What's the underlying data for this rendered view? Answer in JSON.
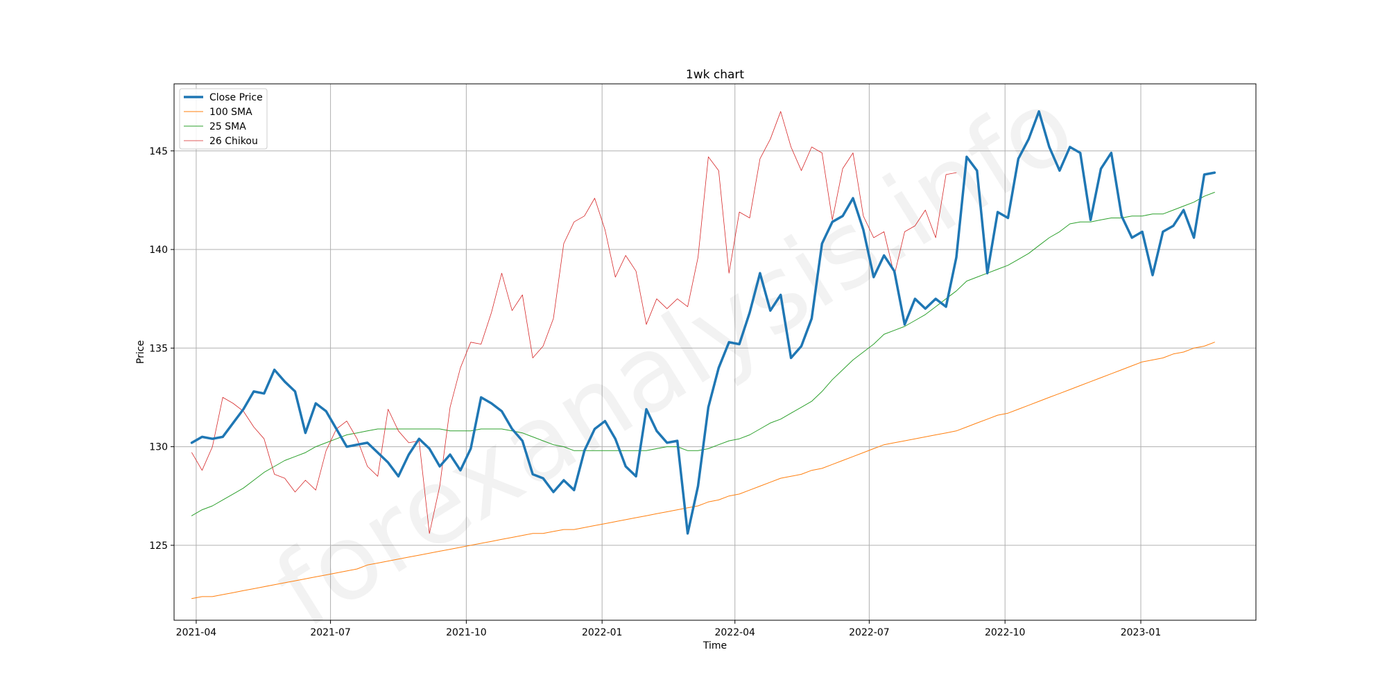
{
  "chart_data": {
    "type": "line",
    "title": "1wk chart",
    "xlabel": "Time",
    "ylabel": "Price",
    "x_start": "2021-03-29",
    "x_step_days": 7,
    "xlim": [
      "2021-03-17",
      "2023-03-20"
    ],
    "ylim": [
      121.2,
      148.4
    ],
    "x_ticks": [
      "2021-04",
      "2021-07",
      "2021-10",
      "2022-01",
      "2022-04",
      "2022-07",
      "2022-10",
      "2023-01"
    ],
    "x_tick_dates": [
      "2021-04-01",
      "2021-07-01",
      "2021-10-01",
      "2022-01-01",
      "2022-04-01",
      "2022-07-01",
      "2022-10-01",
      "2023-01-01"
    ],
    "y_ticks": [
      125,
      130,
      135,
      140,
      145
    ],
    "grid": true,
    "legend_position": "top-left",
    "watermark": "forexanalysis.info",
    "series": [
      {
        "name": "Close Price",
        "color": "#1f77b4",
        "width": 3.5,
        "values": [
          130.2,
          130.5,
          130.4,
          130.5,
          131.2,
          131.9,
          132.8,
          132.7,
          133.9,
          133.3,
          132.8,
          130.7,
          132.2,
          131.8,
          130.9,
          130.0,
          130.1,
          130.2,
          129.7,
          129.2,
          128.5,
          129.6,
          130.4,
          129.9,
          129.0,
          129.6,
          128.8,
          129.9,
          132.5,
          132.2,
          131.8,
          130.9,
          130.3,
          128.6,
          128.4,
          127.7,
          128.3,
          127.8,
          129.8,
          130.9,
          131.3,
          130.4,
          129.0,
          128.5,
          131.9,
          130.8,
          130.2,
          130.3,
          125.6,
          128.0,
          132.0,
          134.0,
          135.3,
          135.2,
          136.8,
          138.8,
          136.9,
          137.7,
          134.5,
          135.1,
          136.5,
          140.3,
          141.4,
          141.7,
          142.6,
          141.0,
          138.6,
          139.7,
          138.9,
          136.2,
          137.5,
          137.0,
          137.5,
          137.1,
          139.6,
          144.7,
          144.0,
          138.8,
          141.9,
          141.6,
          144.6,
          145.6,
          147.0,
          145.2,
          144.0,
          145.2,
          144.9,
          141.5,
          144.1,
          144.9,
          141.7,
          140.6,
          140.9,
          138.7,
          140.9,
          141.2,
          142.0,
          140.6,
          143.8,
          143.9
        ]
      },
      {
        "name": "100 SMA",
        "color": "#ff7f0e",
        "width": 1,
        "values": [
          122.3,
          122.4,
          122.4,
          122.5,
          122.6,
          122.7,
          122.8,
          122.9,
          123.0,
          123.1,
          123.2,
          123.3,
          123.4,
          123.5,
          123.6,
          123.7,
          123.8,
          124.0,
          124.1,
          124.2,
          124.3,
          124.4,
          124.5,
          124.6,
          124.7,
          124.8,
          124.9,
          125.0,
          125.1,
          125.2,
          125.3,
          125.4,
          125.5,
          125.6,
          125.6,
          125.7,
          125.8,
          125.8,
          125.9,
          126.0,
          126.1,
          126.2,
          126.3,
          126.4,
          126.5,
          126.6,
          126.7,
          126.8,
          126.9,
          127.0,
          127.2,
          127.3,
          127.5,
          127.6,
          127.8,
          128.0,
          128.2,
          128.4,
          128.5,
          128.6,
          128.8,
          128.9,
          129.1,
          129.3,
          129.5,
          129.7,
          129.9,
          130.1,
          130.2,
          130.3,
          130.4,
          130.5,
          130.6,
          130.7,
          130.8,
          131.0,
          131.2,
          131.4,
          131.6,
          131.7,
          131.9,
          132.1,
          132.3,
          132.5,
          132.7,
          132.9,
          133.1,
          133.3,
          133.5,
          133.7,
          133.9,
          134.1,
          134.3,
          134.4,
          134.5,
          134.7,
          134.8,
          135.0,
          135.1,
          135.3
        ]
      },
      {
        "name": "25 SMA",
        "color": "#2ca02c",
        "width": 1,
        "values": [
          126.5,
          126.8,
          127.0,
          127.3,
          127.6,
          127.9,
          128.3,
          128.7,
          129.0,
          129.3,
          129.5,
          129.7,
          130.0,
          130.2,
          130.4,
          130.6,
          130.7,
          130.8,
          130.9,
          130.9,
          130.9,
          130.9,
          130.9,
          130.9,
          130.9,
          130.8,
          130.8,
          130.8,
          130.9,
          130.9,
          130.9,
          130.8,
          130.7,
          130.5,
          130.3,
          130.1,
          130.0,
          129.8,
          129.8,
          129.8,
          129.8,
          129.8,
          129.8,
          129.8,
          129.8,
          129.9,
          130.0,
          130.0,
          129.8,
          129.8,
          129.9,
          130.1,
          130.3,
          130.4,
          130.6,
          130.9,
          131.2,
          131.4,
          131.7,
          132.0,
          132.3,
          132.8,
          133.4,
          133.9,
          134.4,
          134.8,
          135.2,
          135.7,
          135.9,
          136.1,
          136.4,
          136.7,
          137.1,
          137.5,
          137.9,
          138.4,
          138.6,
          138.8,
          139.0,
          139.2,
          139.5,
          139.8,
          140.2,
          140.6,
          140.9,
          141.3,
          141.4,
          141.4,
          141.5,
          141.6,
          141.6,
          141.7,
          141.7,
          141.8,
          141.8,
          142.0,
          142.2,
          142.4,
          142.7,
          142.9
        ]
      },
      {
        "name": "26 Chikou",
        "color": "#d62728",
        "width": 0.8,
        "values": [
          129.7,
          128.8,
          130.0,
          132.5,
          132.2,
          131.8,
          131.0,
          130.4,
          128.6,
          128.4,
          127.7,
          128.3,
          127.8,
          129.8,
          130.9,
          131.3,
          130.4,
          129.0,
          128.5,
          131.9,
          130.8,
          130.2,
          130.3,
          125.6,
          128.0,
          132.0,
          134.0,
          135.3,
          135.2,
          136.8,
          138.8,
          136.9,
          137.7,
          134.5,
          135.1,
          136.5,
          140.3,
          141.4,
          141.7,
          142.6,
          141.0,
          138.6,
          139.7,
          138.9,
          136.2,
          137.5,
          137.0,
          137.5,
          137.1,
          139.6,
          144.7,
          144.0,
          138.8,
          141.9,
          141.6,
          144.6,
          145.6,
          147.0,
          145.2,
          144.0,
          145.2,
          144.9,
          141.5,
          144.1,
          144.9,
          141.7,
          140.6,
          140.9,
          138.7,
          140.9,
          141.2,
          142.0,
          140.6,
          143.8,
          143.9
        ]
      }
    ]
  }
}
